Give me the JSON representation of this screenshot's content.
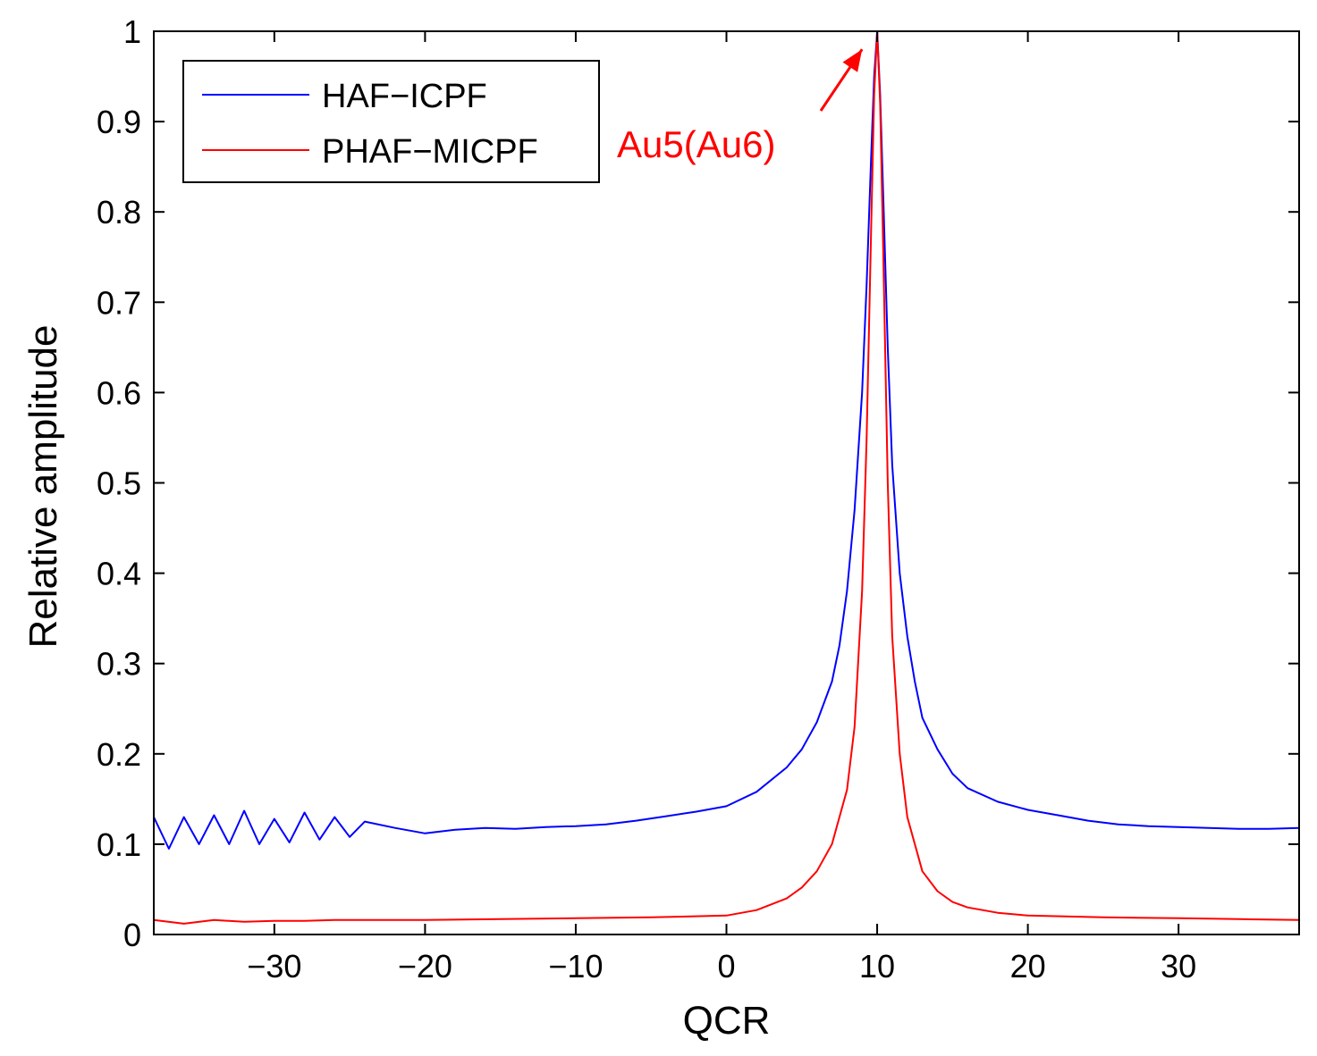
{
  "chart_data": {
    "type": "line",
    "title": "",
    "xlabel": "QCR",
    "ylabel": "Relative amplitude",
    "xlim": [
      -38,
      38
    ],
    "ylim": [
      0,
      1
    ],
    "xticks": [
      -30,
      -20,
      -10,
      0,
      10,
      20,
      30
    ],
    "xtick_labels": [
      "−30",
      "−20",
      "−10",
      "0",
      "10",
      "20",
      "30"
    ],
    "yticks": [
      0,
      0.1,
      0.2,
      0.3,
      0.4,
      0.5,
      0.6,
      0.7,
      0.8,
      0.9,
      1
    ],
    "ytick_labels": [
      "0",
      "0.1",
      "0.2",
      "0.3",
      "0.4",
      "0.5",
      "0.6",
      "0.7",
      "0.8",
      "0.9",
      "1"
    ],
    "grid": false,
    "legend": {
      "position": "top-left"
    },
    "series": [
      {
        "name": "HAF−ICPF",
        "color": "#0000ff",
        "x": [
          -38,
          -37,
          -36,
          -35,
          -34,
          -33,
          -32,
          -31,
          -30,
          -29,
          -28,
          -27,
          -26,
          -25,
          -24,
          -22,
          -20,
          -18,
          -16,
          -14,
          -12,
          -10,
          -8,
          -6,
          -4,
          -2,
          0,
          2,
          4,
          5,
          6,
          7,
          7.5,
          8,
          8.5,
          9,
          9.3,
          9.6,
          9.8,
          10,
          10.2,
          10.4,
          10.7,
          11,
          11.5,
          12,
          12.5,
          13,
          14,
          15,
          16,
          18,
          20,
          22,
          24,
          26,
          28,
          30,
          32,
          34,
          36,
          38
        ],
        "values": [
          0.13,
          0.095,
          0.13,
          0.1,
          0.132,
          0.1,
          0.137,
          0.1,
          0.128,
          0.102,
          0.135,
          0.105,
          0.13,
          0.108,
          0.125,
          0.118,
          0.112,
          0.116,
          0.118,
          0.117,
          0.119,
          0.12,
          0.122,
          0.126,
          0.131,
          0.136,
          0.142,
          0.158,
          0.185,
          0.205,
          0.235,
          0.28,
          0.32,
          0.38,
          0.47,
          0.6,
          0.72,
          0.86,
          0.95,
          1.0,
          0.93,
          0.82,
          0.65,
          0.52,
          0.4,
          0.33,
          0.28,
          0.24,
          0.205,
          0.178,
          0.162,
          0.147,
          0.138,
          0.132,
          0.126,
          0.122,
          0.12,
          0.119,
          0.118,
          0.117,
          0.117,
          0.118
        ]
      },
      {
        "name": "PHAF−MICPF",
        "color": "#ff0000",
        "x": [
          -38,
          -36,
          -34,
          -32,
          -30,
          -28,
          -26,
          -24,
          -20,
          -15,
          -10,
          -5,
          0,
          2,
          4,
          5,
          6,
          7,
          8,
          8.5,
          9,
          9.3,
          9.6,
          9.8,
          10,
          10.2,
          10.4,
          10.7,
          11,
          11.5,
          12,
          13,
          14,
          15,
          16,
          18,
          20,
          25,
          30,
          34,
          38
        ],
        "values": [
          0.016,
          0.012,
          0.016,
          0.014,
          0.015,
          0.015,
          0.016,
          0.016,
          0.016,
          0.017,
          0.018,
          0.019,
          0.021,
          0.027,
          0.04,
          0.052,
          0.07,
          0.1,
          0.16,
          0.23,
          0.38,
          0.55,
          0.78,
          0.93,
          1.0,
          0.92,
          0.76,
          0.5,
          0.33,
          0.2,
          0.13,
          0.07,
          0.048,
          0.036,
          0.03,
          0.024,
          0.021,
          0.019,
          0.018,
          0.017,
          0.016
        ]
      }
    ],
    "annotations": [
      {
        "text": "Au5(Au6)",
        "color": "#ff0000",
        "points_to": {
          "x": 9,
          "y": 0.98
        }
      }
    ]
  }
}
